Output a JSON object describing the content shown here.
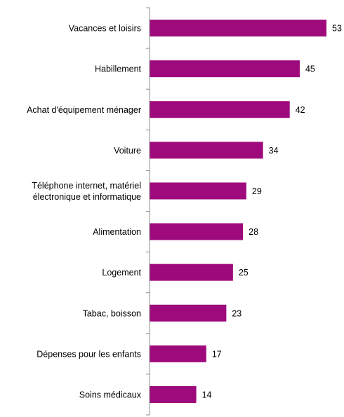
{
  "chart_data": {
    "type": "bar",
    "orientation": "horizontal",
    "title": "",
    "xlabel": "",
    "ylabel": "",
    "categories": [
      [
        "Vacances et loisirs"
      ],
      [
        "Habillement"
      ],
      [
        "Achat d'équipement ménager"
      ],
      [
        "Voiture"
      ],
      [
        "Téléphone internet, matériel",
        "électronique et informatique"
      ],
      [
        "Alimentation"
      ],
      [
        "Logement"
      ],
      [
        "Tabac, boisson"
      ],
      [
        "Dépenses pour les enfants"
      ],
      [
        "Soins médicaux"
      ]
    ],
    "values": [
      53,
      45,
      42,
      34,
      29,
      28,
      25,
      23,
      17,
      14
    ],
    "xlim": [
      0,
      53
    ],
    "grid": false,
    "legend": "none",
    "bar_color": "#9E0A7C",
    "axis_color": "#8C8C8C"
  }
}
